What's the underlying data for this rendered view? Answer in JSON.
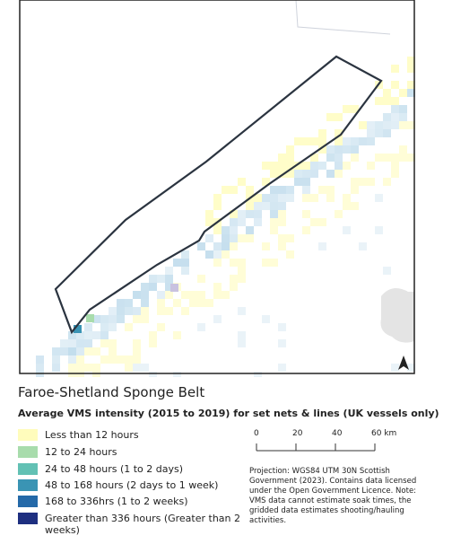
{
  "title": "Faroe-Shetland Sponge Belt",
  "subtitle": "Average VMS intensity (2015 to 2019) for set nets & lines (UK vessels only)",
  "legend": [
    {
      "label": "Less than 12 hours",
      "color": "#fffcbc"
    },
    {
      "label": "12 to 24 hours",
      "color": "#a8dcac"
    },
    {
      "label": "24 to 48 hours (1 to 2 days)",
      "color": "#62c1b4"
    },
    {
      "label": "48 to 168 hours (2 days to 1 week)",
      "color": "#3a94b4"
    },
    {
      "label": "168 to 336hrs (1 to 2 weeks)",
      "color": "#2469a8"
    },
    {
      "label": "Greater than 336 hours (Greater than 2 weeks)",
      "color": "#1e2f80"
    }
  ],
  "scale_bar": [
    "0",
    "20",
    "40",
    "60 km"
  ],
  "notes": "Projection: WGS84 UTM 30N Scottish Government (2023). Contains data licensed under the Open Government Licence. Note: VMS data cannot estimate soak times, the gridded data estimates shooting/hauling activities."
}
